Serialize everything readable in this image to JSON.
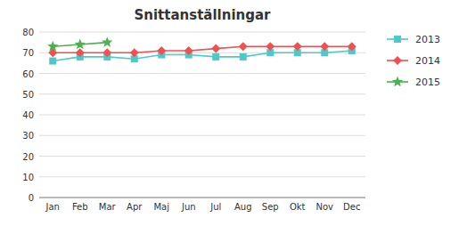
{
  "chart_data": {
    "type": "line",
    "title": "Snittanställningar",
    "categories": [
      "Jan",
      "Feb",
      "Mar",
      "Apr",
      "Maj",
      "Jun",
      "Jul",
      "Aug",
      "Sep",
      "Okt",
      "Nov",
      "Dec"
    ],
    "series": [
      {
        "name": "2013",
        "color": "#4ec9c9",
        "marker": "square",
        "values": [
          66,
          68,
          68,
          67,
          69,
          69,
          68,
          68,
          70,
          70,
          70,
          71
        ]
      },
      {
        "name": "2014",
        "color": "#f05050",
        "marker": "diamond",
        "values": [
          70,
          70,
          70,
          70,
          71,
          71,
          72,
          73,
          73,
          73,
          73,
          73
        ]
      },
      {
        "name": "2015",
        "color": "#4caf50",
        "marker": "star",
        "values": [
          73,
          74,
          75,
          null,
          null,
          null,
          null,
          null,
          null,
          null,
          null,
          null
        ]
      }
    ],
    "ylim": [
      0,
      80
    ],
    "yticks": [
      0,
      10,
      20,
      30,
      40,
      50,
      60,
      70,
      80
    ],
    "grid": true,
    "legend": "right"
  }
}
